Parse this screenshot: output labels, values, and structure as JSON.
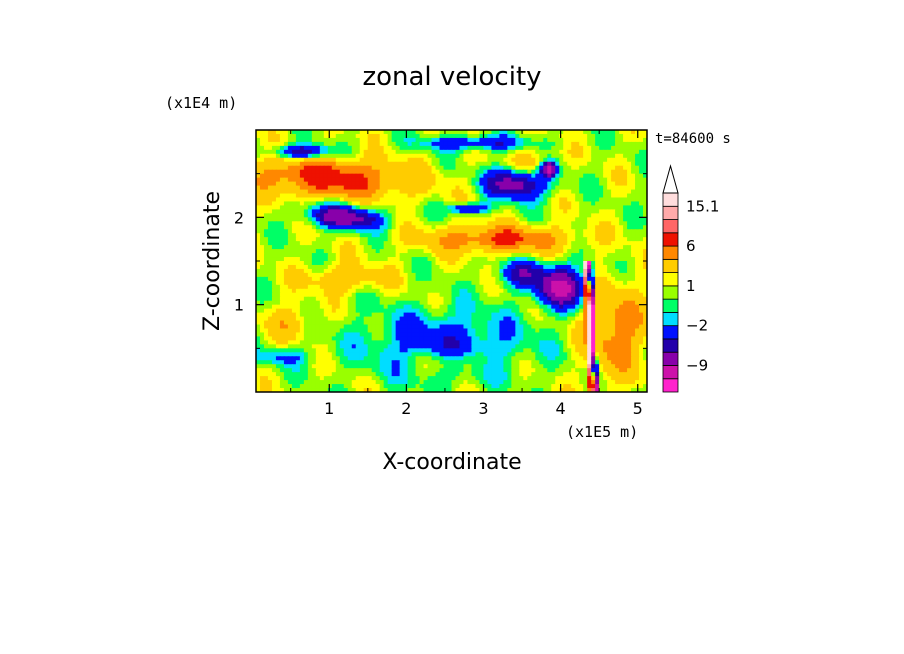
{
  "chart_data": {
    "type": "heatmap",
    "title": "zonal velocity",
    "xlabel": "X-coordinate",
    "ylabel": "Z-coordinate",
    "x_scale_label": "(x1E5 m)",
    "y_scale_label": "(x1E4 m)",
    "time_label": "t=84600 s",
    "xlim": [
      0.05,
      5.12
    ],
    "ylim": [
      0,
      3.0
    ],
    "x_ticks": [
      {
        "value": 1,
        "label": "1"
      },
      {
        "value": 2,
        "label": "2"
      },
      {
        "value": 3,
        "label": "3"
      },
      {
        "value": 4,
        "label": "4"
      },
      {
        "value": 5,
        "label": "5"
      }
    ],
    "y_ticks": [
      {
        "value": 1,
        "label": "1"
      },
      {
        "value": 2,
        "label": "2"
      }
    ],
    "colorbar": {
      "levels": [
        -15,
        -12,
        -9,
        -6,
        -4,
        -2,
        -1,
        0,
        1,
        2,
        4,
        6,
        9,
        12,
        15.1
      ],
      "colors": [
        "#ff22cc",
        "#cc11aa",
        "#8800aa",
        "#2200aa",
        "#0011ff",
        "#00ddff",
        "#00ff66",
        "#99ff00",
        "#ffff00",
        "#ffcc00",
        "#ff8800",
        "#ee1100",
        "#ff6666",
        "#ffaaaa",
        "#ffdddd"
      ],
      "labels": [
        {
          "value": 15.1,
          "label": "15.1"
        },
        {
          "value": 6,
          "label": "6"
        },
        {
          "value": 1,
          "label": "1"
        },
        {
          "value": -2,
          "label": "−2"
        },
        {
          "value": -9,
          "label": "−9"
        }
      ]
    }
  }
}
